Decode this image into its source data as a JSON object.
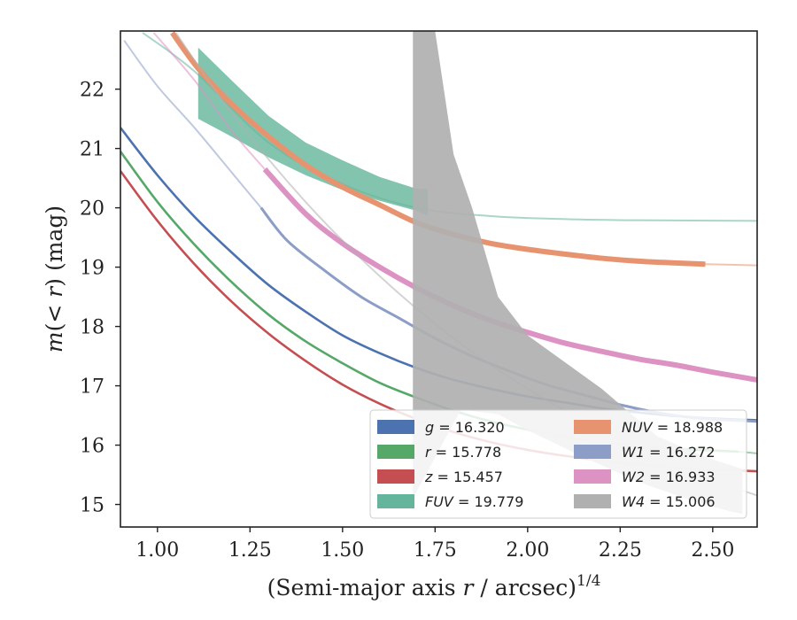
{
  "chart_data": {
    "type": "line",
    "xlabel": "(Semi-major axis r / arcsec)",
    "xlabel_exponent": "1/4",
    "xlabel_italic": "r",
    "ylabel": "m(< r) (mag)",
    "xlim": [
      0.9,
      2.62
    ],
    "ylim": [
      22.98,
      14.62
    ],
    "y_inverted": true,
    "grid": false,
    "legend_position": "lower-right",
    "xticks": [
      1.0,
      1.25,
      1.5,
      1.75,
      2.0,
      2.25,
      2.5
    ],
    "xtick_labels": [
      "1.00",
      "1.25",
      "1.50",
      "1.75",
      "2.00",
      "2.25",
      "2.50"
    ],
    "yticks": [
      15,
      16,
      17,
      18,
      19,
      20,
      21,
      22
    ],
    "ytick_labels": [
      "15",
      "16",
      "17",
      "18",
      "19",
      "20",
      "21",
      "22"
    ],
    "series": [
      {
        "name": "g = 16.320",
        "band": "g",
        "mag": "16.320",
        "color": "#4c72b0",
        "solid": [
          [
            0.9,
            21.35
          ],
          [
            1.0,
            20.55
          ],
          [
            1.1,
            19.85
          ],
          [
            1.2,
            19.25
          ],
          [
            1.3,
            18.7
          ],
          [
            1.4,
            18.25
          ],
          [
            1.5,
            17.85
          ],
          [
            1.6,
            17.55
          ],
          [
            1.7,
            17.3
          ],
          [
            1.8,
            17.1
          ],
          [
            1.9,
            16.95
          ],
          [
            2.0,
            16.82
          ],
          [
            2.1,
            16.72
          ],
          [
            2.2,
            16.62
          ],
          [
            2.3,
            16.55
          ],
          [
            2.4,
            16.49
          ],
          [
            2.5,
            16.45
          ],
          [
            2.62,
            16.42
          ]
        ],
        "faint": []
      },
      {
        "name": "r = 15.778",
        "band": "r",
        "mag": "15.778",
        "color": "#55a868",
        "solid": [
          [
            0.9,
            20.95
          ],
          [
            1.0,
            20.1
          ],
          [
            1.1,
            19.38
          ],
          [
            1.2,
            18.75
          ],
          [
            1.3,
            18.2
          ],
          [
            1.4,
            17.75
          ],
          [
            1.5,
            17.38
          ],
          [
            1.6,
            17.05
          ],
          [
            1.7,
            16.8
          ],
          [
            1.8,
            16.58
          ],
          [
            1.9,
            16.4
          ],
          [
            2.0,
            16.26
          ],
          [
            2.1,
            16.14
          ],
          [
            2.2,
            16.05
          ],
          [
            2.3,
            15.98
          ],
          [
            2.4,
            15.94
          ],
          [
            2.57,
            15.89
          ]
        ],
        "faint": [
          [
            2.57,
            15.89
          ],
          [
            2.62,
            15.86
          ]
        ]
      },
      {
        "name": "z = 15.457",
        "band": "z",
        "mag": "15.457",
        "color": "#c44e52",
        "solid": [
          [
            0.9,
            20.62
          ],
          [
            1.0,
            19.78
          ],
          [
            1.1,
            19.05
          ],
          [
            1.2,
            18.42
          ],
          [
            1.3,
            17.88
          ],
          [
            1.4,
            17.42
          ],
          [
            1.5,
            17.02
          ],
          [
            1.6,
            16.7
          ],
          [
            1.7,
            16.44
          ],
          [
            1.8,
            16.22
          ],
          [
            1.9,
            16.05
          ],
          [
            2.0,
            15.92
          ],
          [
            2.1,
            15.82
          ],
          [
            2.2,
            15.74
          ],
          [
            2.3,
            15.67
          ],
          [
            2.4,
            15.62
          ],
          [
            2.5,
            15.59
          ],
          [
            2.62,
            15.56
          ]
        ],
        "faint": []
      },
      {
        "name": "FUV = 19.779",
        "band": "FUV",
        "mag": "19.779",
        "color": "#64b59b",
        "band_upper": [
          [
            1.11,
            21.5
          ],
          [
            1.2,
            21.2
          ],
          [
            1.3,
            20.85
          ],
          [
            1.4,
            20.55
          ],
          [
            1.5,
            20.3
          ],
          [
            1.6,
            20.12
          ],
          [
            1.7,
            19.95
          ],
          [
            1.73,
            19.87
          ]
        ],
        "band_lower": [
          [
            1.11,
            22.7
          ],
          [
            1.2,
            22.15
          ],
          [
            1.3,
            21.55
          ],
          [
            1.4,
            21.1
          ],
          [
            1.5,
            20.8
          ],
          [
            1.6,
            20.52
          ],
          [
            1.7,
            20.32
          ],
          [
            1.73,
            20.32
          ]
        ],
        "faint": [
          [
            0.96,
            22.95
          ],
          [
            1.1,
            22.3
          ],
          [
            1.3,
            21.1
          ],
          [
            1.5,
            20.4
          ],
          [
            1.7,
            20.0
          ],
          [
            1.9,
            19.86
          ],
          [
            2.1,
            19.81
          ],
          [
            2.3,
            19.79
          ],
          [
            2.62,
            19.78
          ]
        ]
      },
      {
        "name": "NUV = 18.988",
        "band": "NUV",
        "mag": "18.988",
        "color": "#e8936f",
        "solid": [
          [
            1.04,
            22.95
          ],
          [
            1.11,
            22.35
          ],
          [
            1.2,
            21.75
          ],
          [
            1.3,
            21.2
          ],
          [
            1.4,
            20.72
          ],
          [
            1.5,
            20.35
          ],
          [
            1.6,
            20.05
          ],
          [
            1.7,
            19.75
          ],
          [
            1.8,
            19.55
          ],
          [
            1.9,
            19.4
          ],
          [
            2.0,
            19.3
          ],
          [
            2.1,
            19.22
          ],
          [
            2.2,
            19.15
          ],
          [
            2.3,
            19.1
          ],
          [
            2.4,
            19.07
          ],
          [
            2.48,
            19.05
          ]
        ],
        "faint": [
          [
            2.48,
            19.05
          ],
          [
            2.62,
            19.03
          ]
        ]
      },
      {
        "name": "W1 = 16.272",
        "band": "W1",
        "mag": "16.272",
        "color": "#8c9dc7",
        "solid": [
          [
            1.28,
            20.0
          ],
          [
            1.35,
            19.45
          ],
          [
            1.45,
            18.95
          ],
          [
            1.55,
            18.5
          ],
          [
            1.65,
            18.15
          ],
          [
            1.75,
            17.8
          ],
          [
            1.85,
            17.5
          ],
          [
            1.95,
            17.25
          ],
          [
            2.05,
            17.02
          ],
          [
            2.15,
            16.85
          ],
          [
            2.25,
            16.68
          ],
          [
            2.35,
            16.55
          ],
          [
            2.45,
            16.46
          ],
          [
            2.55,
            16.42
          ],
          [
            2.62,
            16.4
          ]
        ],
        "faint": [
          [
            0.91,
            22.82
          ],
          [
            1.0,
            22.05
          ],
          [
            1.1,
            21.35
          ],
          [
            1.2,
            20.6
          ],
          [
            1.28,
            20.0
          ]
        ]
      },
      {
        "name": "W2 = 16.933",
        "band": "W2",
        "mag": "16.933",
        "color": "#dd92c4",
        "solid": [
          [
            1.29,
            20.65
          ],
          [
            1.4,
            19.9
          ],
          [
            1.5,
            19.4
          ],
          [
            1.6,
            19.0
          ],
          [
            1.7,
            18.65
          ],
          [
            1.8,
            18.35
          ],
          [
            1.9,
            18.1
          ],
          [
            2.0,
            17.9
          ],
          [
            2.1,
            17.72
          ],
          [
            2.2,
            17.58
          ],
          [
            2.3,
            17.45
          ],
          [
            2.4,
            17.35
          ],
          [
            2.5,
            17.23
          ],
          [
            2.62,
            17.1
          ]
        ],
        "faint": [
          [
            0.99,
            22.95
          ],
          [
            1.1,
            22.15
          ],
          [
            1.2,
            21.3
          ],
          [
            1.29,
            20.65
          ]
        ]
      },
      {
        "name": "W4 = 15.006",
        "band": "W4",
        "mag": "15.006",
        "color": "#b0b0b0",
        "band_upper": [
          [
            1.69,
            15.1
          ],
          [
            1.82,
            16.6
          ],
          [
            1.92,
            16.52
          ],
          [
            2.0,
            16.25
          ],
          [
            2.15,
            15.8
          ],
          [
            2.3,
            15.38
          ],
          [
            2.45,
            15.05
          ],
          [
            2.55,
            14.88
          ],
          [
            2.58,
            14.84
          ]
        ],
        "band_lower": [
          [
            1.69,
            22.98
          ],
          [
            1.75,
            22.98
          ],
          [
            1.8,
            20.9
          ],
          [
            1.85,
            20.0
          ],
          [
            1.92,
            18.5
          ],
          [
            2.0,
            17.85
          ],
          [
            2.2,
            16.95
          ],
          [
            2.35,
            16.15
          ],
          [
            2.48,
            15.8
          ],
          [
            2.58,
            15.6
          ]
        ],
        "faint": [
          [
            1.05,
            22.95
          ],
          [
            1.2,
            21.6
          ],
          [
            1.4,
            20.1
          ],
          [
            1.6,
            18.85
          ],
          [
            1.8,
            17.8
          ],
          [
            2.0,
            16.95
          ],
          [
            2.2,
            16.25
          ],
          [
            2.4,
            15.65
          ],
          [
            2.62,
            15.15
          ]
        ]
      }
    ],
    "legend": [
      {
        "math": "g",
        "value": "= 16.320",
        "color": "#4c72b0",
        "col": 0,
        "row": 0
      },
      {
        "math": "r",
        "value": "= 15.778",
        "color": "#55a868",
        "col": 0,
        "row": 1
      },
      {
        "math": "z",
        "value": "= 15.457",
        "color": "#c44e52",
        "col": 0,
        "row": 2
      },
      {
        "math": "FUV",
        "value": "= 19.779",
        "color": "#64b59b",
        "col": 0,
        "row": 3
      },
      {
        "math": "NUV",
        "value": "= 18.988",
        "color": "#e8936f",
        "col": 1,
        "row": 0
      },
      {
        "math": "W1",
        "value": "= 16.272",
        "color": "#8c9dc7",
        "col": 1,
        "row": 1
      },
      {
        "math": "W2",
        "value": "= 16.933",
        "color": "#dd92c4",
        "col": 1,
        "row": 2
      },
      {
        "math": "W4",
        "value": "= 15.006",
        "color": "#b0b0b0",
        "col": 1,
        "row": 3
      }
    ]
  }
}
